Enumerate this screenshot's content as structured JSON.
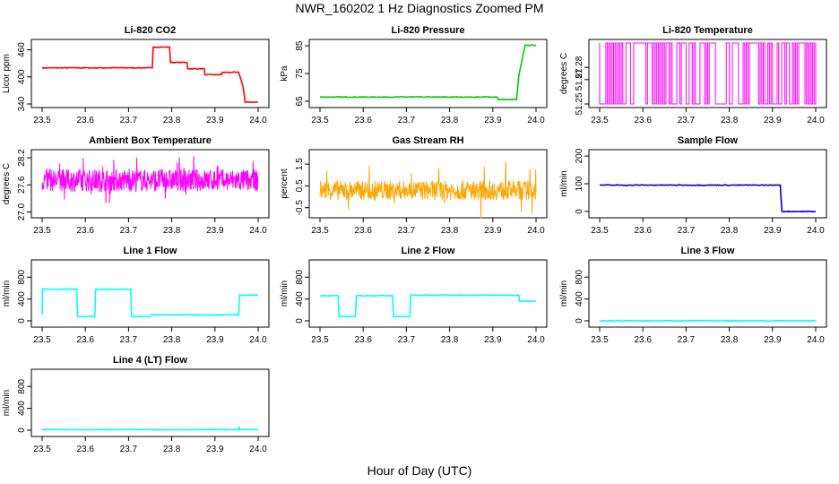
{
  "title": "NWR_160202  1 Hz Diagnostics Zoomed PM",
  "xlabel": "Hour of Day (UTC)",
  "x_ticks": [
    "23.5",
    "23.6",
    "23.7",
    "23.8",
    "23.9",
    "24.0"
  ],
  "colors": {
    "red": "#ff0000",
    "green": "#00cc00",
    "magenta": "#ff00ff",
    "orange": "#ffa500",
    "blue": "#0000cc",
    "cyan": "#00ffff"
  },
  "chart_data": [
    {
      "type": "line",
      "title": "Li-820 CO2",
      "ylabel": "Licor ppm",
      "color": "#ff0000",
      "xlim": [
        23.5,
        24.0
      ],
      "ylim": [
        340,
        475
      ],
      "yticks": [
        340,
        400,
        460
      ],
      "ytick_labels": [
        "340",
        "400",
        "460"
      ],
      "x": [
        23.5,
        23.755,
        23.757,
        23.795,
        23.797,
        23.835,
        23.837,
        23.875,
        23.877,
        23.915,
        23.917,
        23.955,
        23.965,
        23.97,
        24.0
      ],
      "y": [
        420,
        420,
        466,
        466,
        432,
        432,
        418,
        418,
        405,
        405,
        410,
        410,
        380,
        344,
        344
      ]
    },
    {
      "type": "line",
      "title": "Li-820 Pressure",
      "ylabel": "kPa",
      "color": "#00cc00",
      "xlim": [
        23.5,
        24.0
      ],
      "ylim": [
        64,
        86
      ],
      "yticks": [
        65,
        75,
        85
      ],
      "ytick_labels": [
        "65",
        "75",
        "85"
      ],
      "x": [
        23.5,
        23.91,
        23.912,
        23.955,
        23.96,
        23.975,
        23.977,
        24.0
      ],
      "y": [
        66.5,
        66.5,
        65.6,
        65.6,
        74,
        85.3,
        85.2,
        85.2
      ]
    },
    {
      "type": "noise_binary",
      "title": "Li-820 Temperature",
      "ylabel": "degrees C",
      "color": "#ff00ff",
      "xlim": [
        23.5,
        24.0
      ],
      "ylim": [
        51.25,
        51.3
      ],
      "yticks": [
        51.25,
        51.27,
        51.28
      ],
      "ytick_labels": [
        "51.25",
        "51.27",
        "51.28"
      ],
      "levels": [
        51.25,
        51.3
      ],
      "switches": 140
    },
    {
      "type": "noise",
      "title": "Ambient Box Temperature",
      "ylabel": "degrees C",
      "color": "#ff00ff",
      "xlim": [
        23.5,
        24.0
      ],
      "ylim": [
        26.95,
        28.3
      ],
      "yticks": [
        27.0,
        27.6,
        28.2
      ],
      "ytick_labels": [
        "27.0",
        "27.6",
        "28.2"
      ],
      "center": 27.7,
      "amplitude": 0.25,
      "spike": 0.55,
      "points": 600
    },
    {
      "type": "noise",
      "title": "Gas Stream RH",
      "ylabel": "percent",
      "color": "#ffa500",
      "xlim": [
        23.5,
        24.0
      ],
      "ylim": [
        -0.8,
        2.0
      ],
      "yticks": [
        -0.5,
        0.5,
        1.5
      ],
      "ytick_labels": [
        "-0.5",
        "0.5",
        "1.5"
      ],
      "center": 0.3,
      "amplitude": 0.45,
      "spike": 1.4,
      "points": 600
    },
    {
      "type": "line",
      "title": "Sample Flow",
      "ylabel": "ml/min",
      "color": "#0000cc",
      "xlim": [
        23.5,
        24.0
      ],
      "ylim": [
        -10,
        210
      ],
      "yticks": [
        0,
        100,
        200
      ],
      "ytick_labels": [
        "0",
        "100",
        "200"
      ],
      "x": [
        23.5,
        23.918,
        23.922,
        24.0
      ],
      "y": [
        95,
        95,
        0,
        0
      ]
    },
    {
      "type": "line",
      "title": "Line 1 Flow",
      "ylabel": "ml/min",
      "color": "#00ffff",
      "xlim": [
        23.5,
        24.0
      ],
      "ylim": [
        -50,
        1050
      ],
      "yticks": [
        0,
        400,
        800
      ],
      "ytick_labels": [
        "0",
        "400",
        "800"
      ],
      "x": [
        23.5,
        23.501,
        23.58,
        23.582,
        23.622,
        23.624,
        23.705,
        23.707,
        23.75,
        23.752,
        23.955,
        23.957,
        24.0
      ],
      "y": [
        120,
        580,
        580,
        80,
        80,
        580,
        580,
        80,
        80,
        110,
        110,
        470,
        470
      ]
    },
    {
      "type": "line",
      "title": "Line 2 Flow",
      "ylabel": "ml/min",
      "color": "#00ffff",
      "xlim": [
        23.5,
        24.0
      ],
      "ylim": [
        -50,
        1050
      ],
      "yticks": [
        0,
        400,
        800
      ],
      "ytick_labels": [
        "0",
        "400",
        "800"
      ],
      "x": [
        23.5,
        23.542,
        23.544,
        23.582,
        23.584,
        23.668,
        23.67,
        23.708,
        23.71,
        23.96,
        23.962,
        24.0
      ],
      "y": [
        460,
        460,
        80,
        80,
        460,
        460,
        80,
        80,
        470,
        470,
        360,
        360
      ]
    },
    {
      "type": "line",
      "title": "Line 3 Flow",
      "ylabel": "ml/min",
      "color": "#00ffff",
      "xlim": [
        23.5,
        24.0
      ],
      "ylim": [
        -50,
        1050
      ],
      "yticks": [
        0,
        400,
        800
      ],
      "ytick_labels": [
        "0",
        "400",
        "800"
      ],
      "x": [
        23.5,
        24.0
      ],
      "y": [
        0,
        0
      ]
    },
    {
      "type": "line",
      "title": "Line 4 (LT) Flow",
      "ylabel": "ml/min",
      "color": "#00ffff",
      "xlim": [
        23.5,
        24.0
      ],
      "ylim": [
        -50,
        1050
      ],
      "yticks": [
        0,
        400,
        800
      ],
      "ytick_labels": [
        "0",
        "400",
        "800"
      ],
      "x": [
        23.5,
        23.955,
        23.956,
        23.957,
        23.958,
        24.0
      ],
      "y": [
        10,
        10,
        70,
        10,
        10,
        10
      ]
    }
  ]
}
